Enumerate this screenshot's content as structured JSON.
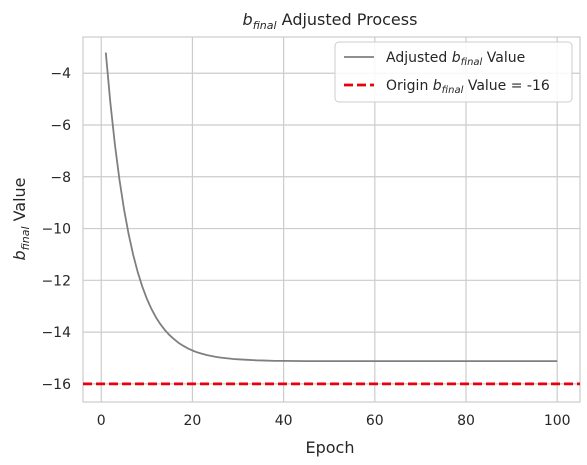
{
  "chart_data": {
    "type": "line",
    "title": "b_final Adjusted Process",
    "xlabel": "Epoch",
    "ylabel": "b_final Value",
    "xlim": [
      -4,
      105
    ],
    "ylim": [
      -16.7,
      -2.6
    ],
    "xticks": [
      0,
      20,
      40,
      60,
      80,
      100
    ],
    "yticks": [
      -4,
      -6,
      -8,
      -10,
      -12,
      -14,
      -16
    ],
    "grid": true,
    "legend_position": "upper right",
    "series": [
      {
        "name": "Adjusted b_final Value",
        "color": "#7f7f7f",
        "style": "solid",
        "x": [
          1,
          2,
          3,
          4,
          5,
          6,
          7,
          8,
          9,
          10,
          11,
          12,
          13,
          14,
          15,
          16,
          17,
          18,
          19,
          20,
          21,
          22,
          23,
          24,
          25,
          26,
          27,
          28,
          29,
          30,
          32,
          34,
          36,
          38,
          40,
          45,
          50,
          55,
          60,
          65,
          70,
          75,
          80,
          85,
          90,
          95,
          100
        ],
        "y": [
          -3.2,
          -5.14,
          -6.76,
          -8.12,
          -9.26,
          -10.21,
          -11.01,
          -11.68,
          -12.24,
          -12.71,
          -13.1,
          -13.43,
          -13.7,
          -13.93,
          -14.12,
          -14.28,
          -14.42,
          -14.53,
          -14.63,
          -14.71,
          -14.78,
          -14.83,
          -14.88,
          -14.92,
          -14.95,
          -14.98,
          -15.0,
          -15.02,
          -15.04,
          -15.05,
          -15.07,
          -15.09,
          -15.1,
          -15.11,
          -15.11,
          -15.12,
          -15.12,
          -15.12,
          -15.12,
          -15.12,
          -15.12,
          -15.12,
          -15.12,
          -15.12,
          -15.12,
          -15.12,
          -15.12
        ]
      },
      {
        "name": "Origin b_final Value = -16",
        "color": "#e8000b",
        "style": "dashed",
        "constant_y": -16
      }
    ]
  },
  "text": {
    "title_b": "b",
    "title_sub": "final",
    "title_rest": " Adjusted Process",
    "xlabel": "Epoch",
    "ylabel_b": "b",
    "ylabel_sub": "final",
    "ylabel_rest": " Value",
    "legend1_pre": "Adjusted ",
    "legend1_b": "b",
    "legend1_sub": "final",
    "legend1_post": " Value",
    "legend2_pre": "Origin ",
    "legend2_b": "b",
    "legend2_sub": "final",
    "legend2_post": " Value = -16"
  }
}
